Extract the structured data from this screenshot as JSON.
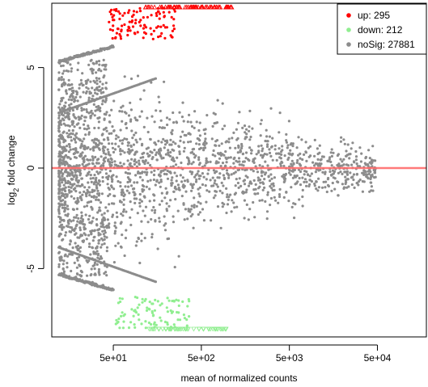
{
  "chart_data": {
    "type": "scatter",
    "xlabel": "mean of normalized counts",
    "ylabel_base": "log",
    "ylabel_sub": "2",
    "ylabel_rest": " fold change",
    "x_scale": "log",
    "x_ticks": [
      {
        "value": 50,
        "label": "5e+01"
      },
      {
        "value": 500,
        "label": "5e+02"
      },
      {
        "value": 5000,
        "label": "5e+03"
      },
      {
        "value": 50000,
        "label": "5e+04"
      }
    ],
    "y_ticks": [
      {
        "value": -5,
        "label": "-5"
      },
      {
        "value": 0,
        "label": "0"
      },
      {
        "value": 5,
        "label": "5"
      }
    ],
    "xlim": [
      10,
      180000
    ],
    "ylim": [
      -8.4,
      8.2
    ],
    "clip_limit": 8,
    "reference_line": {
      "y": 0,
      "color": "#ff6b6b"
    },
    "legend_position": "top-right",
    "series": [
      {
        "name": "up",
        "count": "295",
        "color": "#ff0000"
      },
      {
        "name": "down",
        "count": "212",
        "color": "#90ee90"
      },
      {
        "name": "noSig",
        "count": "27881",
        "color": "#8c8c8c"
      }
    ]
  }
}
